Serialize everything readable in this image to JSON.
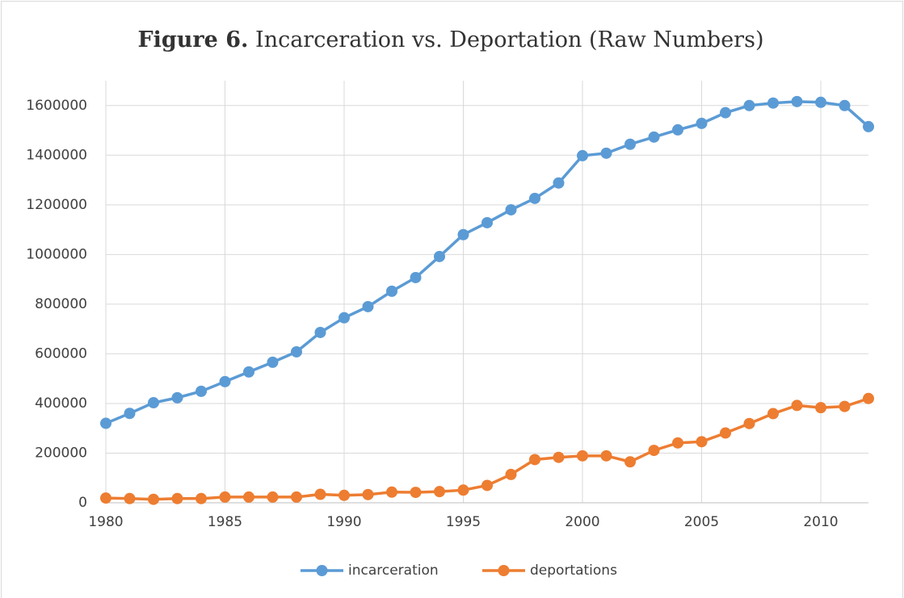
{
  "chart_data": {
    "type": "line",
    "title_label": "Figure 6.",
    "title": "Incarceration vs. Deportation (Raw Numbers)",
    "x": [
      1980,
      1981,
      1982,
      1983,
      1984,
      1985,
      1986,
      1987,
      1988,
      1989,
      1990,
      1991,
      1992,
      1993,
      1994,
      1995,
      1996,
      1997,
      1998,
      1999,
      2000,
      2001,
      2002,
      2003,
      2004,
      2005,
      2006,
      2007,
      2008,
      2009,
      2010,
      2011,
      2012
    ],
    "series": [
      {
        "name": "incarceration",
        "color": "#5b9bd5",
        "values": [
          320000,
          360000,
          403000,
          423000,
          449000,
          488000,
          527000,
          566000,
          608000,
          686000,
          745000,
          790000,
          852000,
          907000,
          992000,
          1080000,
          1128000,
          1180000,
          1226000,
          1288000,
          1398000,
          1408000,
          1444000,
          1473000,
          1502000,
          1528000,
          1571000,
          1600000,
          1610000,
          1616000,
          1613000,
          1600000,
          1515000
        ]
      },
      {
        "name": "deportations",
        "color": "#ed7d31",
        "values": [
          19000,
          17000,
          14000,
          17000,
          17000,
          23000,
          23000,
          23000,
          23000,
          34000,
          30000,
          33000,
          43000,
          42000,
          45000,
          51000,
          70000,
          114000,
          174000,
          183000,
          189000,
          189000,
          165000,
          211000,
          241000,
          246000,
          281000,
          319000,
          359000,
          392000,
          383000,
          388000,
          420000
        ]
      }
    ],
    "xlim": [
      1980,
      2012
    ],
    "xticks": [
      1980,
      1985,
      1990,
      1995,
      2000,
      2005,
      2010
    ],
    "ylim": [
      0,
      1700000
    ],
    "yticks": [
      0,
      200000,
      400000,
      600000,
      800000,
      1000000,
      1200000,
      1400000,
      1600000
    ],
    "grid": true,
    "legend": "bottom"
  }
}
